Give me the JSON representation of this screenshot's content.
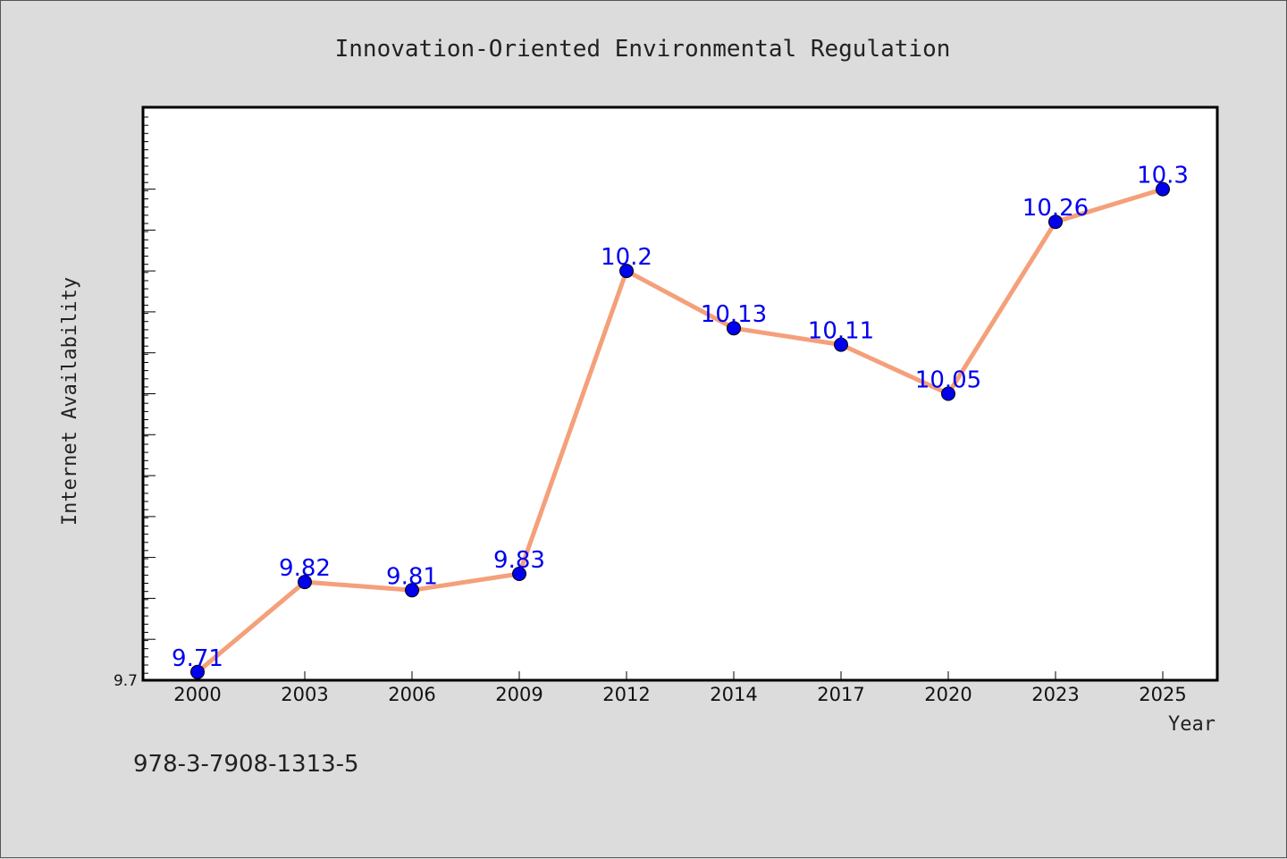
{
  "chart_data": {
    "type": "line",
    "title": "Innovation-Oriented Environmental Regulation",
    "xlabel": "Year",
    "ylabel": "Internet Availability",
    "categories": [
      "2000",
      "2003",
      "2006",
      "2009",
      "2012",
      "2014",
      "2017",
      "2020",
      "2023",
      "2025"
    ],
    "series": [
      {
        "values": [
          9.71,
          9.82,
          9.81,
          9.83,
          10.2,
          10.13,
          10.11,
          10.05,
          10.26,
          10.3
        ],
        "labels": [
          "9.71",
          "9.82",
          "9.81",
          "9.83",
          "10.2",
          "10.13",
          "10.11",
          "10.05",
          "10.26",
          "10.3"
        ],
        "line_color": "#f4a07a",
        "marker_color": "#0000ee"
      }
    ],
    "ylim": [
      9.7,
      10.4
    ],
    "ytick_labels": [
      "9.7"
    ],
    "grid": false,
    "legend": "none"
  },
  "footer": {
    "isbn": "978-3-7908-1313-5"
  }
}
